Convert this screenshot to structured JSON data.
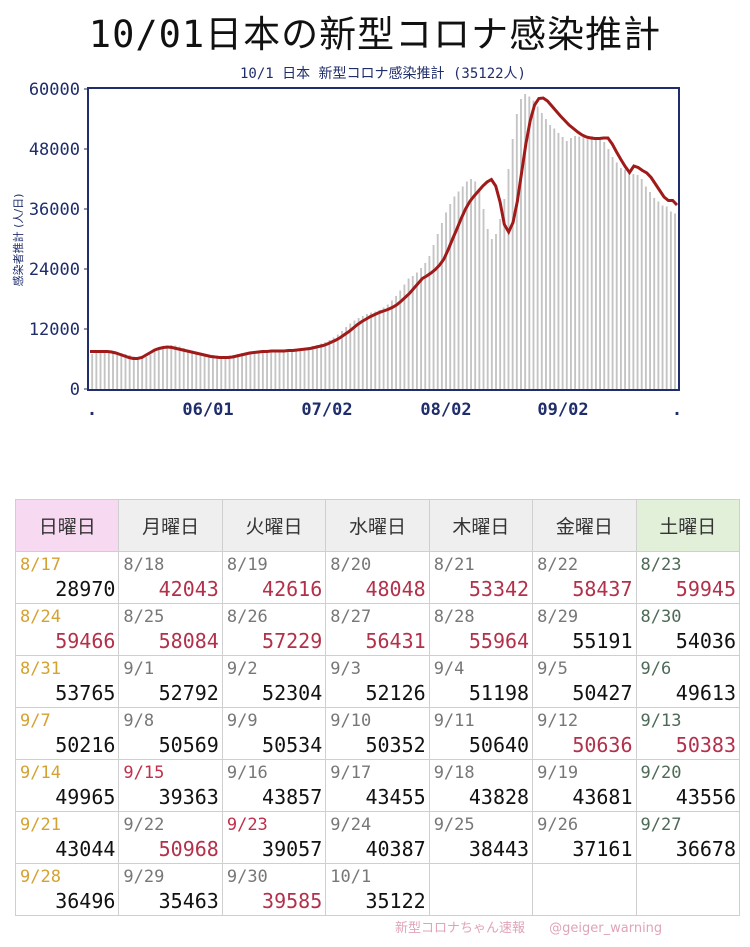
{
  "page_title": "10/01日本の新型コロナ感染推計",
  "footer": {
    "brand": "新型コロナちゃん速報",
    "handle": "@geiger_warning"
  },
  "colors": {
    "line": "#a01a1a",
    "bar": "#c4c4c4",
    "axis": "#1f2d6b",
    "red_value": "#b3304a",
    "orange_date": "#d4a232"
  },
  "chart_data": {
    "type": "bar",
    "title": "10/1 日本 新型コロナ感染推計 (35122人)",
    "ylabel": "感染者推計 (人/日)",
    "xlabel": "",
    "ylim": [
      0,
      60000
    ],
    "yticks": [
      "0",
      "12000",
      "24000",
      "36000",
      "48000",
      "60000"
    ],
    "xtick_labels": [
      ".",
      "06/01",
      "07/02",
      "08/02",
      "09/02",
      "."
    ],
    "grid": false,
    "series": [
      {
        "kind": "bar",
        "values": [
          7000,
          7200,
          7400,
          7500,
          7600,
          7500,
          7300,
          7200,
          7000,
          6800,
          6500,
          6300,
          6200,
          6400,
          6900,
          7500,
          8000,
          8400,
          8700,
          8800,
          8700,
          8500,
          8200,
          7900,
          7700,
          7500,
          7300,
          7100,
          6900,
          6800,
          6700,
          6600,
          6600,
          6700,
          6800,
          7000,
          7200,
          7300,
          7400,
          7500,
          7600,
          7700,
          7700,
          7800,
          7800,
          7800,
          7900,
          7900,
          8000,
          8000,
          8100,
          8200,
          8400,
          8600,
          8800,
          9100,
          9400,
          9800,
          10300,
          10900,
          11600,
          12400,
          13100,
          13700,
          14200,
          14600,
          15000,
          15300,
          15500,
          15800,
          16300,
          16900,
          17700,
          18600,
          19700,
          20900,
          22100,
          22600,
          23300,
          24200,
          25200,
          26600,
          28800,
          31000,
          33200,
          35300,
          37000,
          38500,
          39500,
          40500,
          41500,
          42000,
          41500,
          40000,
          36000,
          32000,
          30000,
          31000,
          34000,
          38000,
          44000,
          50000,
          55000,
          58000,
          59000,
          58500,
          57700,
          56500,
          55200,
          54000,
          52800,
          52100,
          51200,
          50400,
          49600,
          50200,
          50600,
          50500,
          50400,
          50600,
          50600,
          50400,
          50000,
          49400,
          48000,
          46400,
          45300,
          44200,
          43900,
          43600,
          43000,
          42800,
          42000,
          40500,
          39400,
          38200,
          37500,
          36700,
          36500,
          35500,
          35100
        ]
      },
      {
        "kind": "line",
        "values": [
          7500,
          7500,
          7500,
          7500,
          7500,
          7400,
          7200,
          6900,
          6600,
          6300,
          6100,
          6100,
          6300,
          6800,
          7300,
          7800,
          8100,
          8300,
          8400,
          8300,
          8100,
          7900,
          7700,
          7500,
          7300,
          7100,
          6900,
          6700,
          6500,
          6400,
          6300,
          6300,
          6300,
          6400,
          6600,
          6800,
          7000,
          7200,
          7300,
          7400,
          7500,
          7500,
          7600,
          7600,
          7600,
          7600,
          7700,
          7700,
          7800,
          7900,
          8000,
          8100,
          8300,
          8500,
          8700,
          9000,
          9400,
          9800,
          10300,
          10900,
          11500,
          12200,
          12900,
          13500,
          14000,
          14500,
          14900,
          15300,
          15600,
          15900,
          16300,
          16800,
          17500,
          18300,
          19100,
          20100,
          21100,
          22100,
          22600,
          23200,
          23900,
          24800,
          26000,
          27900,
          30000,
          32000,
          34100,
          36000,
          37500,
          38600,
          39600,
          40600,
          41400,
          41900,
          40600,
          37400,
          32900,
          31400,
          33300,
          37500,
          43300,
          49100,
          53700,
          56800,
          58100,
          58200,
          57600,
          56600,
          55600,
          54600,
          53700,
          52800,
          52100,
          51400,
          50800,
          50400,
          50200,
          50100,
          50100,
          50200,
          50200,
          49000,
          47400,
          45900,
          44500,
          43300,
          44600,
          44300,
          43700,
          43200,
          42300,
          41000,
          39700,
          38400,
          37700,
          37700,
          36800
        ]
      }
    ]
  },
  "calendar": {
    "headers": [
      "日曜日",
      "月曜日",
      "火曜日",
      "水曜日",
      "木曜日",
      "金曜日",
      "土曜日"
    ],
    "weeks": [
      [
        {
          "date": "8/17",
          "value": "28970"
        },
        {
          "date": "8/18",
          "value": "42043"
        },
        {
          "date": "8/19",
          "value": "42616"
        },
        {
          "date": "8/20",
          "value": "48048"
        },
        {
          "date": "8/21",
          "value": "53342"
        },
        {
          "date": "8/22",
          "value": "58437"
        },
        {
          "date": "8/23",
          "value": "59945"
        }
      ],
      [
        {
          "date": "8/24",
          "value": "59466"
        },
        {
          "date": "8/25",
          "value": "58084"
        },
        {
          "date": "8/26",
          "value": "57229"
        },
        {
          "date": "8/27",
          "value": "56431"
        },
        {
          "date": "8/28",
          "value": "55964"
        },
        {
          "date": "8/29",
          "value": "55191"
        },
        {
          "date": "8/30",
          "value": "54036"
        }
      ],
      [
        {
          "date": "8/31",
          "value": "53765"
        },
        {
          "date": "9/1",
          "value": "52792"
        },
        {
          "date": "9/2",
          "value": "52304"
        },
        {
          "date": "9/3",
          "value": "52126"
        },
        {
          "date": "9/4",
          "value": "51198"
        },
        {
          "date": "9/5",
          "value": "50427"
        },
        {
          "date": "9/6",
          "value": "49613"
        }
      ],
      [
        {
          "date": "9/7",
          "value": "50216"
        },
        {
          "date": "9/8",
          "value": "50569"
        },
        {
          "date": "9/9",
          "value": "50534"
        },
        {
          "date": "9/10",
          "value": "50352"
        },
        {
          "date": "9/11",
          "value": "50640"
        },
        {
          "date": "9/12",
          "value": "50636"
        },
        {
          "date": "9/13",
          "value": "50383"
        }
      ],
      [
        {
          "date": "9/14",
          "value": "49965"
        },
        {
          "date": "9/15",
          "value": "39363"
        },
        {
          "date": "9/16",
          "value": "43857"
        },
        {
          "date": "9/17",
          "value": "43455"
        },
        {
          "date": "9/18",
          "value": "43828"
        },
        {
          "date": "9/19",
          "value": "43681"
        },
        {
          "date": "9/20",
          "value": "43556"
        }
      ],
      [
        {
          "date": "9/21",
          "value": "43044"
        },
        {
          "date": "9/22",
          "value": "50968"
        },
        {
          "date": "9/23",
          "value": "39057"
        },
        {
          "date": "9/24",
          "value": "40387"
        },
        {
          "date": "9/25",
          "value": "38443"
        },
        {
          "date": "9/26",
          "value": "37161"
        },
        {
          "date": "9/27",
          "value": "36678"
        }
      ],
      [
        {
          "date": "9/28",
          "value": "36496"
        },
        {
          "date": "9/29",
          "value": "35463"
        },
        {
          "date": "9/30",
          "value": "39585"
        },
        {
          "date": "10/1",
          "value": "35122"
        },
        {
          "date": "",
          "value": ""
        },
        {
          "date": "",
          "value": ""
        },
        {
          "date": "",
          "value": ""
        }
      ]
    ],
    "highlight": {
      "red_values": [
        "0.1",
        "0.2",
        "0.3",
        "0.4",
        "0.5",
        "0.6",
        "1.0",
        "1.1",
        "1.2",
        "1.3",
        "1.4",
        "3.5",
        "3.6",
        "5.1",
        "6.2"
      ],
      "orange_dates": [
        "0.0",
        "1.0",
        "2.0",
        "3.0",
        "4.0",
        "5.0",
        "6.0"
      ],
      "red_dates": [
        "4.1",
        "5.2"
      ],
      "green_dates": [
        "0.6",
        "1.6",
        "2.6",
        "3.6",
        "4.6",
        "5.6"
      ]
    }
  }
}
